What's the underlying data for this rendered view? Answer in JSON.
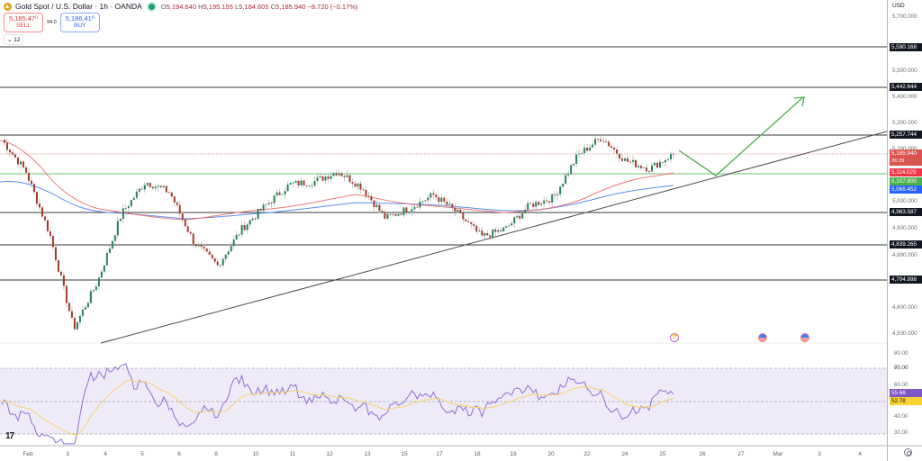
{
  "header": {
    "symbol": "Gold Spot / U.S. Dollar · 1h · OANDA",
    "ohlc": {
      "o_label": "O",
      "o": "5,194.640",
      "h_label": "H",
      "h": "5,195.155",
      "l_label": "L",
      "l": "5,184.605",
      "c_label": "C",
      "c": "5,185.940",
      "change": "−8.720 (−0.17%)"
    }
  },
  "trade": {
    "sell_price": "5,185.47⁰",
    "sell_label": "SELL",
    "spread": "94.0",
    "buy_price": "5,186.41⁰",
    "buy_label": "BUY"
  },
  "indicators_toggle": "⌄ 12",
  "price_axis": {
    "currency": "USD",
    "ticks": [
      "5,700.000",
      "5,500.000",
      "5,400.000",
      "5,300.000",
      "5,200.000",
      "5,000.000",
      "4,900.000",
      "4,800.000",
      "4,600.000",
      "4,500.000"
    ],
    "level_tags": [
      "5,590.168",
      "5,442.644",
      "5,257.744",
      "4,963.587",
      "4,839.265",
      "4,704.998"
    ],
    "current_price": "5,185.940",
    "countdown": "36:39",
    "ma_fast_value": "5,114.029",
    "support_value": "5,107.800",
    "ma_slow_value": "5,066.452"
  },
  "rsi_axis": {
    "ticks": [
      "80.00",
      "70.00",
      "60.00",
      "40.00",
      "30.00"
    ],
    "rsi_value": "55.66",
    "rsi_ma_value": "52.78"
  },
  "time_axis": {
    "labels": [
      "Feb",
      "3",
      "4",
      "5",
      "6",
      "8",
      "10",
      "11",
      "12",
      "13",
      "15",
      "17",
      "18",
      "19",
      "20",
      "22",
      "24",
      "25",
      "26",
      "27",
      "Mar",
      "3",
      "4"
    ]
  },
  "colors": {
    "up": "#26805c",
    "down": "#a33a2a",
    "ma_fast": "#f07878",
    "ma_slow": "#5b8def",
    "support": "#b7e0b4",
    "projection": "#4caf50",
    "rsi": "#8e6fd6",
    "rsi_ma": "#f7d36a",
    "rsi_band": "#efeaf8",
    "level_line": "#3a3a3a",
    "current_red": "#d9534f",
    "tag_fast": "#f23645",
    "tag_support": "#4caf50",
    "tag_slow": "#2962ff",
    "rsi_tag": "#7e57c2",
    "rsi_ma_tag": "#fbd131"
  },
  "chart_data": {
    "type": "candlestick",
    "title": "Gold Spot / U.S. Dollar · 1h · OANDA",
    "xlabel": "",
    "ylabel": "USD",
    "ylim": [
      4450,
      5780
    ],
    "x_ticks": [
      "Feb",
      "3",
      "4",
      "5",
      "6",
      "8",
      "10",
      "11",
      "12",
      "13",
      "15",
      "17",
      "18",
      "19",
      "20",
      "22",
      "24",
      "25",
      "26",
      "27",
      "Mar",
      "3",
      "4"
    ],
    "horizontal_levels": [
      5590.168,
      5442.644,
      5257.744,
      4963.587,
      4839.265,
      4704.998
    ],
    "support_level": 5107.8,
    "current_price": 5185.94,
    "price_path": [
      [
        "Feb 2 start",
        5240
      ],
      [
        "Feb 2",
        5120
      ],
      [
        "Feb 2 late",
        4880
      ],
      [
        "Feb 3",
        4520
      ],
      [
        "Feb 3 late",
        4700
      ],
      [
        "Feb 4",
        4960
      ],
      [
        "Feb 4 late",
        5080
      ],
      [
        "Feb 5",
        5040
      ],
      [
        "Feb 5 late",
        4850
      ],
      [
        "Feb 6",
        4760
      ],
      [
        "Feb 6 late",
        4900
      ],
      [
        "Feb 8",
        4990
      ],
      [
        "Feb 10",
        5070
      ],
      [
        "Feb 11",
        5080
      ],
      [
        "Feb 12",
        5120
      ],
      [
        "Feb 12 late",
        5060
      ],
      [
        "Feb 13",
        4940
      ],
      [
        "Feb 13 late",
        4980
      ],
      [
        "Feb 15",
        5030
      ],
      [
        "Feb 17",
        4960
      ],
      [
        "Feb 17 late",
        4870
      ],
      [
        "Feb 18",
        4900
      ],
      [
        "Feb 19",
        4990
      ],
      [
        "Feb 20",
        5020
      ],
      [
        "Feb 22",
        5180
      ],
      [
        "Feb 24",
        5250
      ],
      [
        "Feb 24 late",
        5160
      ],
      [
        "Feb 25",
        5130
      ],
      [
        "Feb 25 last",
        5186
      ]
    ],
    "series": [
      {
        "name": "MA fast (red)",
        "last": 5114.029
      },
      {
        "name": "MA slow (blue)",
        "last": 5066.452
      }
    ],
    "trendline": {
      "from": [
        "Feb 4",
        4480
      ],
      "to": [
        "Mar 4",
        5260
      ]
    },
    "projection": [
      [
        "Feb 25",
        5200
      ],
      [
        "Feb 26",
        5105
      ],
      [
        "Mar 3",
        5400
      ]
    ],
    "rsi": {
      "ylim": [
        25,
        85
      ],
      "bands": [
        30,
        50,
        70
      ],
      "last_rsi": 55.66,
      "last_rsi_ma": 52.78
    }
  }
}
